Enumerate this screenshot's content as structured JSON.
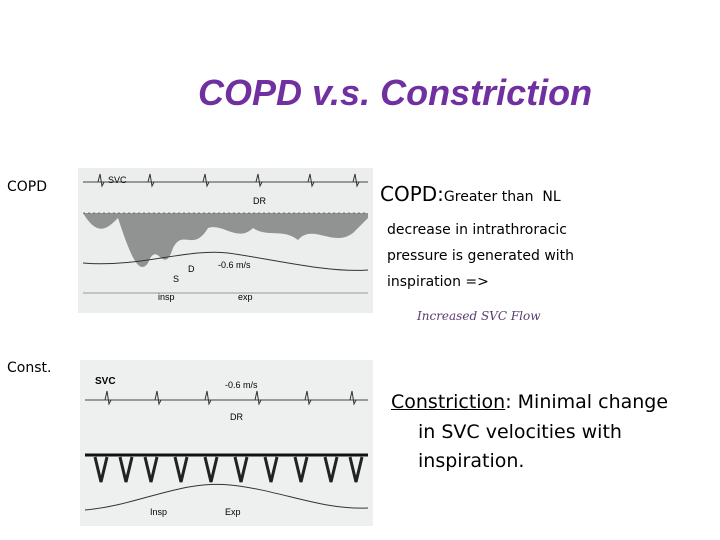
{
  "title": "COPD v.s. Constriction",
  "copd": {
    "label": "COPD",
    "heading": "COPD:",
    "lead": "Greater than  NL",
    "lines": [
      "decrease in intrathroracic",
      "pressure is generated with",
      "inspiration =>"
    ],
    "note": "Increased SVC Flow",
    "image_labels": {
      "svc": "SVC",
      "dr": "DR",
      "s": "S",
      "d": "D",
      "velocity": "-0.6 m/s",
      "insp": "insp",
      "exp": "exp"
    }
  },
  "constriction": {
    "label": "Const.",
    "heading": "Constriction",
    "lead": ": Minimal change",
    "lines": [
      "in SVC velocities with",
      "inspiration."
    ],
    "image_labels": {
      "svc": "SVC",
      "velocity": "-0.6 m/s",
      "dr": "DR",
      "insp": "Insp",
      "exp": "Exp"
    }
  }
}
